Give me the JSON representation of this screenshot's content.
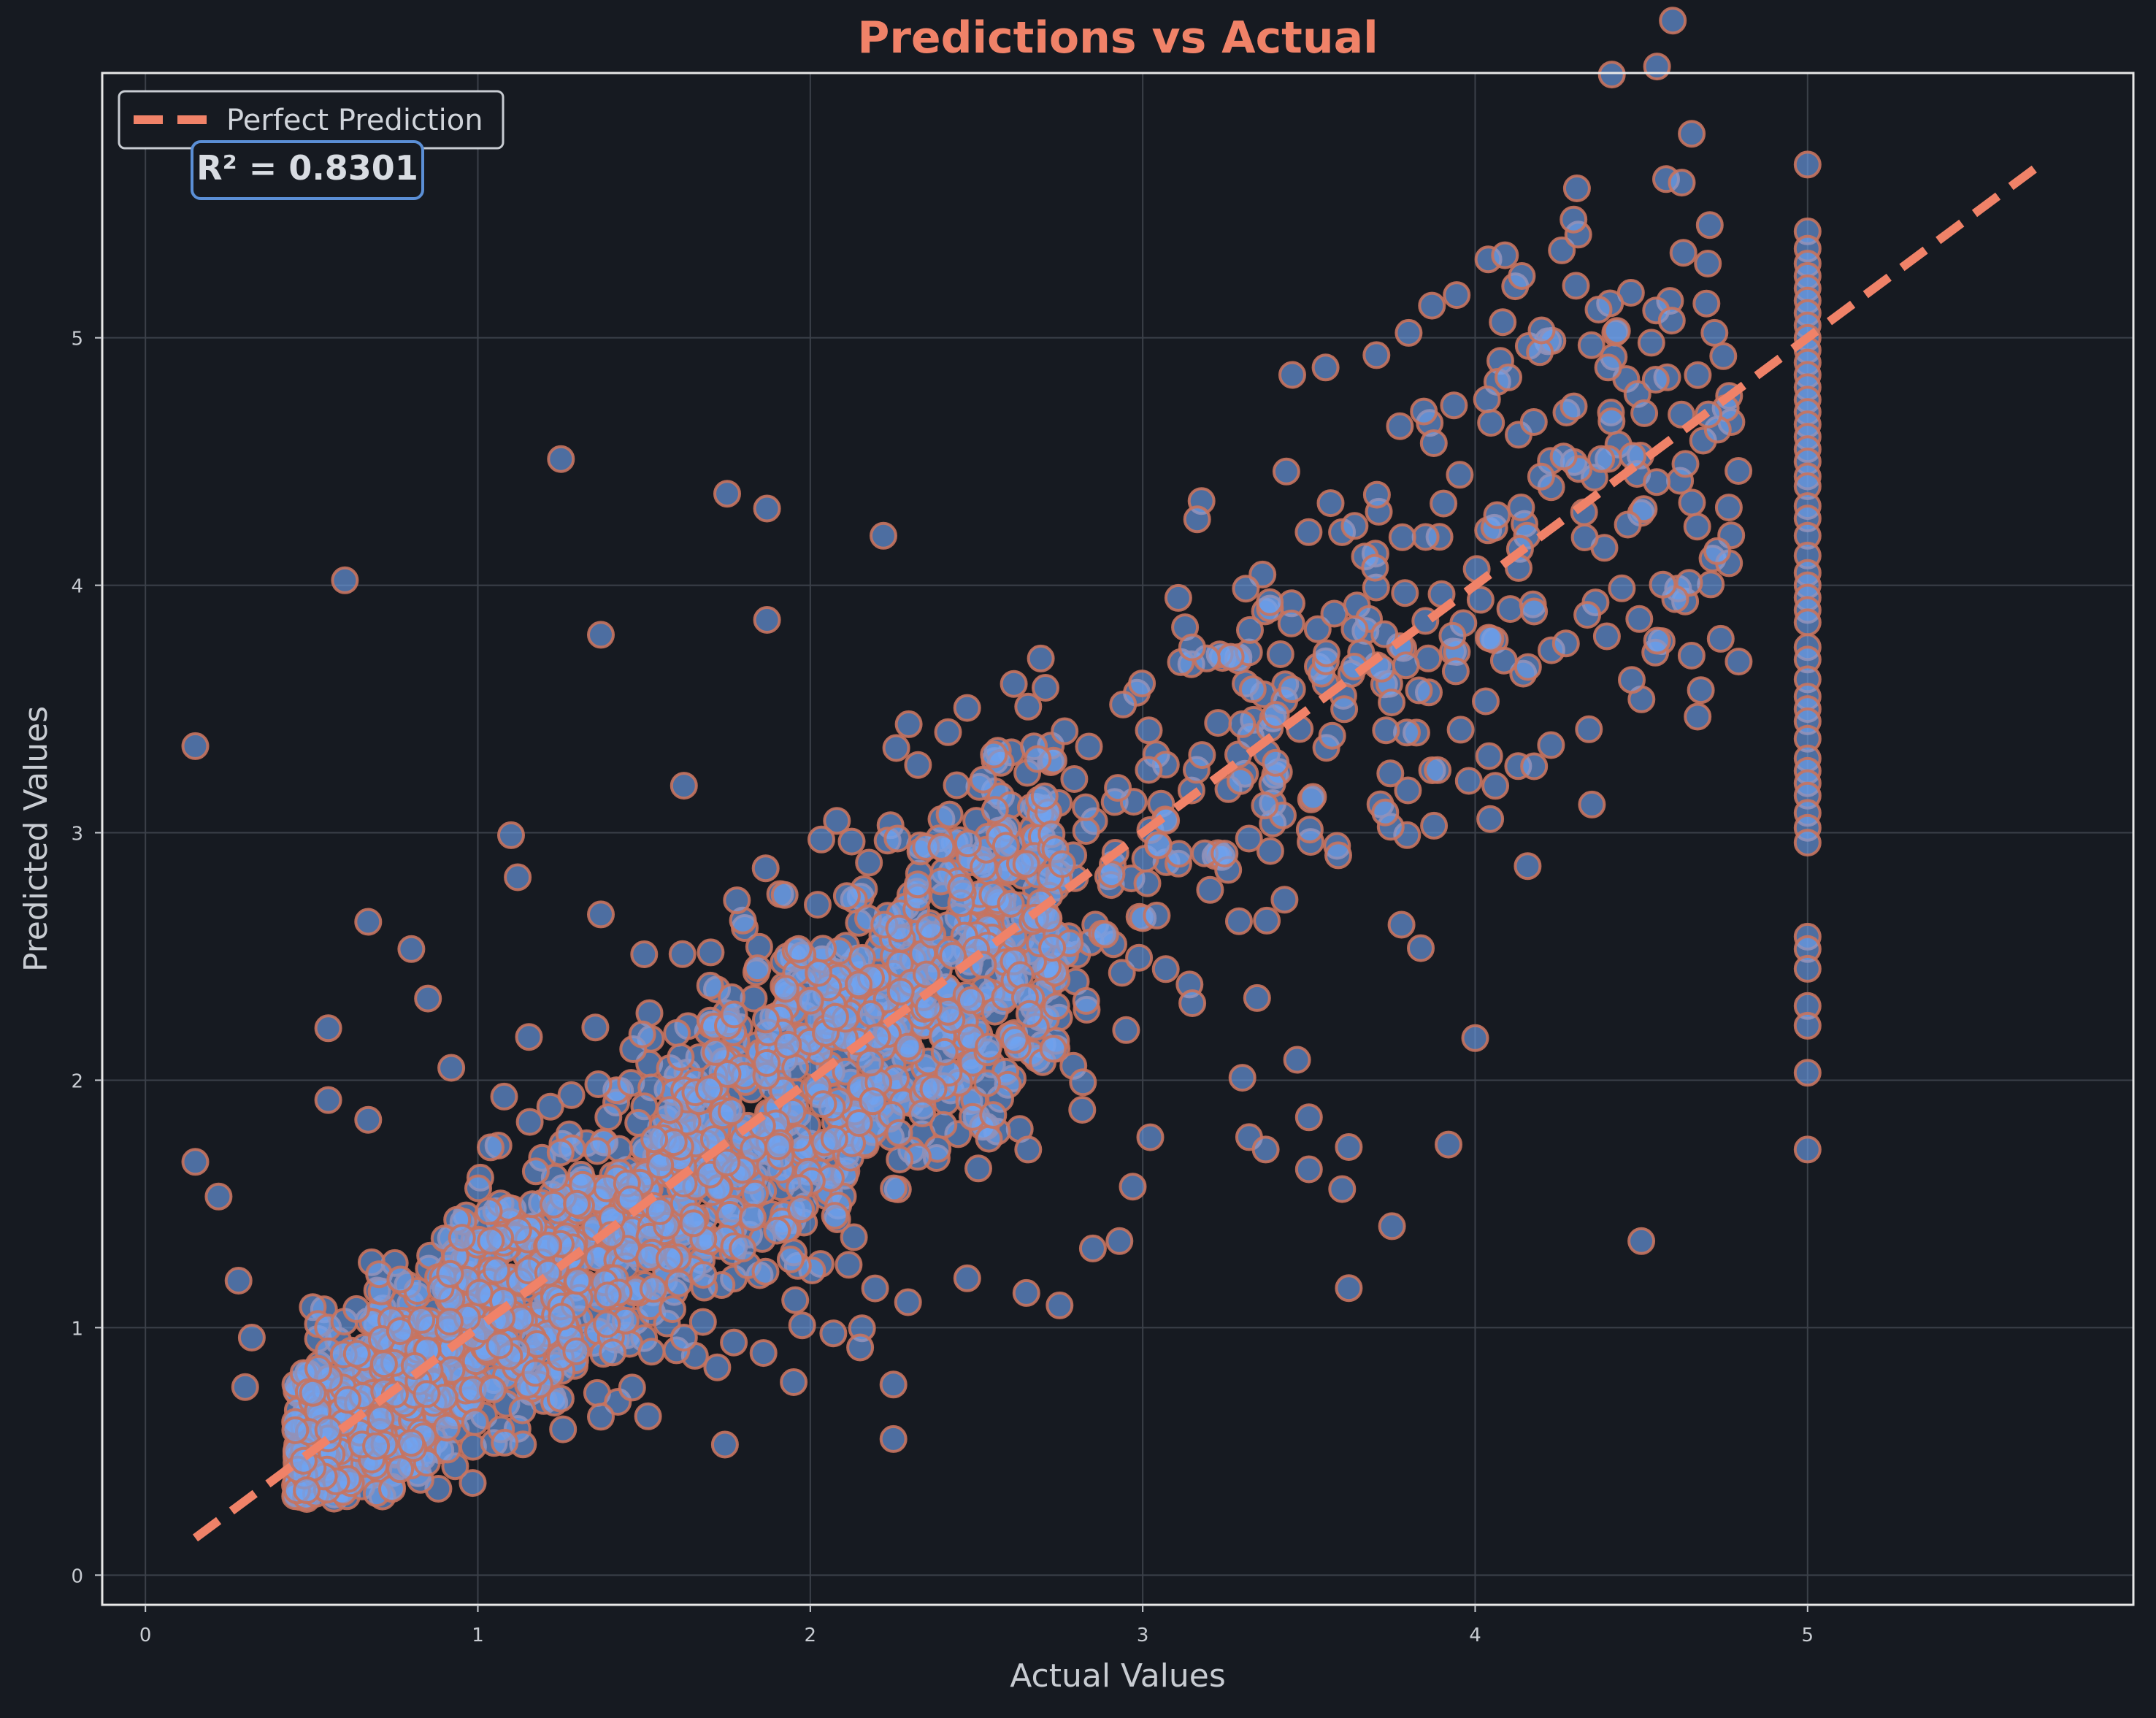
{
  "chart_data": {
    "type": "scatter",
    "title": "Predictions vs Actual",
    "xlabel": "Actual Values",
    "ylabel": "Predicted Values",
    "xlim": [
      -0.13,
      5.98
    ],
    "ylim": [
      -0.12,
      6.07
    ],
    "xticks": [
      0,
      1,
      2,
      3,
      4,
      5
    ],
    "yticks": [
      0,
      1,
      2,
      3,
      4,
      5
    ],
    "grid": true,
    "legend": {
      "placement": "top-left",
      "entries": [
        "Perfect Prediction"
      ]
    },
    "annotation": "R² = 0.8301",
    "reference_line": {
      "name": "Perfect Prediction",
      "x": [
        0.15,
        5.7
      ],
      "y": [
        0.15,
        5.7
      ],
      "style": "dashed",
      "color": "#f08268"
    },
    "marker_fill": "#6fa3f0",
    "marker_edge": "#c8735e",
    "capped_x": 5.0,
    "capped_predicted": [
      5.7,
      5.43,
      5.36,
      5.3,
      5.25,
      5.2,
      5.15,
      5.1,
      5.05,
      5.0,
      4.95,
      4.9,
      4.85,
      4.8,
      4.75,
      4.7,
      4.65,
      4.6,
      4.55,
      4.5,
      4.44,
      4.4,
      4.32,
      4.27,
      4.2,
      4.12,
      4.05,
      4.0,
      3.95,
      3.9,
      3.85,
      3.75,
      3.7,
      3.62,
      3.55,
      3.5,
      3.45,
      3.38,
      3.3,
      3.25,
      3.2,
      3.15,
      3.08,
      3.02,
      2.96,
      2.58,
      2.53,
      2.45,
      2.3,
      2.22,
      2.03,
      1.72
    ],
    "outliers": [
      {
        "x": 0.15,
        "y": 3.35
      },
      {
        "x": 0.6,
        "y": 4.02
      },
      {
        "x": 1.25,
        "y": 4.51
      },
      {
        "x": 1.37,
        "y": 3.8
      },
      {
        "x": 1.75,
        "y": 4.37
      },
      {
        "x": 1.87,
        "y": 4.31
      },
      {
        "x": 1.87,
        "y": 3.86
      },
      {
        "x": 2.22,
        "y": 4.2
      },
      {
        "x": 0.15,
        "y": 1.67
      },
      {
        "x": 0.22,
        "y": 1.53
      },
      {
        "x": 0.55,
        "y": 2.21
      },
      {
        "x": 0.55,
        "y": 1.92
      },
      {
        "x": 0.67,
        "y": 2.64
      },
      {
        "x": 0.67,
        "y": 1.84
      },
      {
        "x": 0.8,
        "y": 2.53
      },
      {
        "x": 0.85,
        "y": 2.33
      },
      {
        "x": 0.92,
        "y": 2.05
      },
      {
        "x": 1.1,
        "y": 2.99
      },
      {
        "x": 1.12,
        "y": 2.82
      },
      {
        "x": 1.37,
        "y": 2.67
      },
      {
        "x": 1.62,
        "y": 3.19
      },
      {
        "x": 0.28,
        "y": 1.19
      },
      {
        "x": 0.32,
        "y": 0.96
      },
      {
        "x": 0.3,
        "y": 0.76
      },
      {
        "x": 1.37,
        "y": 0.64
      },
      {
        "x": 1.62,
        "y": 0.96
      },
      {
        "x": 1.77,
        "y": 0.94
      },
      {
        "x": 1.95,
        "y": 0.78
      },
      {
        "x": 2.15,
        "y": 0.92
      },
      {
        "x": 2.25,
        "y": 0.77
      },
      {
        "x": 2.25,
        "y": 0.55
      },
      {
        "x": 2.65,
        "y": 1.14
      },
      {
        "x": 2.75,
        "y": 1.09
      },
      {
        "x": 2.85,
        "y": 1.32
      },
      {
        "x": 2.93,
        "y": 1.35
      },
      {
        "x": 2.97,
        "y": 1.57
      },
      {
        "x": 3.3,
        "y": 2.01
      },
      {
        "x": 3.32,
        "y": 1.77
      },
      {
        "x": 3.37,
        "y": 1.72
      },
      {
        "x": 3.5,
        "y": 1.85
      },
      {
        "x": 3.5,
        "y": 1.64
      },
      {
        "x": 3.6,
        "y": 1.56
      },
      {
        "x": 3.62,
        "y": 1.73
      },
      {
        "x": 3.62,
        "y": 1.16
      },
      {
        "x": 3.75,
        "y": 1.41
      },
      {
        "x": 3.92,
        "y": 1.74
      },
      {
        "x": 4.0,
        "y": 2.17
      },
      {
        "x": 4.5,
        "y": 1.35
      },
      {
        "x": 3.45,
        "y": 4.85
      },
      {
        "x": 3.55,
        "y": 4.88
      },
      {
        "x": 3.8,
        "y": 5.02
      },
      {
        "x": 3.87,
        "y": 5.13
      },
      {
        "x": 4.2,
        "y": 5.03
      },
      {
        "x": 4.7,
        "y": 5.3
      },
      {
        "x": 4.72,
        "y": 5.02
      },
      {
        "x": 4.35,
        "y": 4.97
      },
      {
        "x": 4.53,
        "y": 4.98
      },
      {
        "x": 4.1,
        "y": 4.84
      },
      {
        "x": 4.4,
        "y": 4.88
      }
    ]
  }
}
